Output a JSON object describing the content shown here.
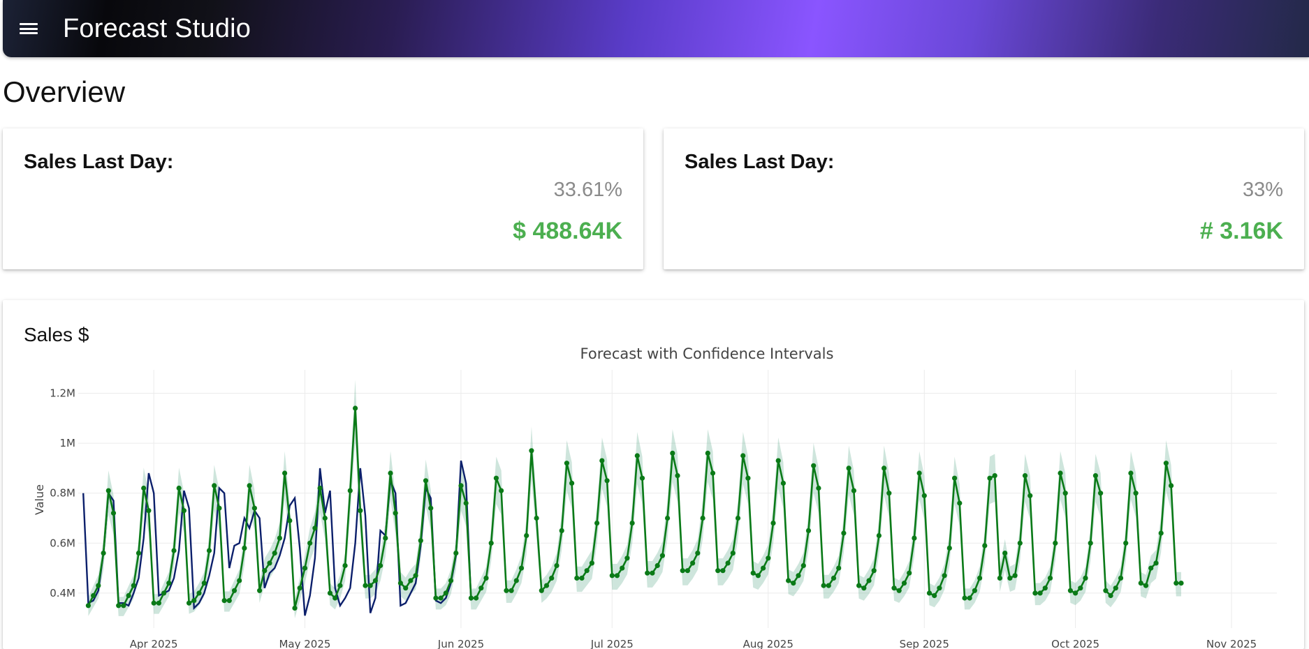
{
  "app": {
    "title": "Forecast Studio",
    "menu_icon": "hamburger-menu-icon"
  },
  "page": {
    "heading": "Overview"
  },
  "kpis": [
    {
      "label": "Sales Last Day:",
      "percent": "33.61%",
      "value": "$ 488.64K"
    },
    {
      "label": "Sales Last Day:",
      "percent": "33%",
      "value": "# 3.16K"
    }
  ],
  "sales_card": {
    "heading": "Sales $"
  },
  "chart_data": {
    "type": "line",
    "title": "Forecast with Confidence Intervals",
    "xlabel": "",
    "ylabel": "Value",
    "x_ticks": [
      "Apr 2025",
      "May 2025",
      "Jun 2025",
      "Jul 2025",
      "Aug 2025",
      "Sep 2025",
      "Oct 2025",
      "Nov 2025"
    ],
    "y_ticks": [
      "0.4M",
      "0.6M",
      "0.8M",
      "1M",
      "1.2M"
    ],
    "y_tick_values": [
      400000,
      600000,
      800000,
      1000000,
      1200000
    ],
    "ylim": [
      260000,
      1260000
    ],
    "x_start": "2025-03-17",
    "x_end": "2025-11-10",
    "actual_start": "2025-03-18",
    "actual": [
      800000,
      360000,
      370000,
      410000,
      560000,
      800000,
      770000,
      360000,
      360000,
      350000,
      400000,
      460000,
      620000,
      880000,
      800000,
      390000,
      400000,
      410000,
      460000,
      570000,
      810000,
      740000,
      340000,
      360000,
      400000,
      470000,
      560000,
      820000,
      800000,
      500000,
      590000,
      600000,
      700000,
      660000,
      730000,
      700000,
      420000,
      480000,
      500000,
      550000,
      620000,
      750000,
      780000,
      580000,
      310000,
      390000,
      540000,
      900000,
      720000,
      810000,
      420000,
      350000,
      380000,
      420000,
      600000,
      900000,
      710000,
      320000,
      380000,
      650000,
      630000,
      850000,
      800000,
      350000,
      360000,
      400000,
      440000,
      590000,
      820000,
      780000,
      370000,
      360000,
      380000,
      440000,
      550000,
      930000,
      840000,
      370000
    ],
    "series": [
      {
        "name": "Forecast",
        "start": "2025-03-19",
        "values": [
          350000,
          390000,
          430000,
          560000,
          810000,
          720000,
          350000,
          350000,
          390000,
          430000,
          560000,
          820000,
          730000,
          360000,
          360000,
          400000,
          440000,
          570000,
          820000,
          730000,
          360000,
          370000,
          400000,
          440000,
          570000,
          830000,
          740000,
          370000,
          370000,
          410000,
          450000,
          580000,
          830000,
          740000,
          410000,
          490000,
          520000,
          560000,
          620000,
          880000,
          690000,
          340000,
          420000,
          500000,
          600000,
          660000,
          820000,
          700000,
          400000,
          380000,
          430000,
          510000,
          810000,
          1140000,
          730000,
          430000,
          430000,
          450000,
          510000,
          620000,
          880000,
          720000,
          440000,
          420000,
          450000,
          470000,
          610000,
          850000,
          740000,
          380000,
          380000,
          400000,
          450000,
          560000,
          830000,
          760000,
          380000,
          380000,
          420000,
          460000,
          600000,
          860000,
          810000,
          410000,
          410000,
          450000,
          500000,
          630000,
          970000,
          700000,
          410000,
          430000,
          460000,
          510000,
          650000,
          920000,
          840000,
          460000,
          460000,
          490000,
          520000,
          680000,
          930000,
          850000,
          470000,
          470000,
          500000,
          540000,
          680000,
          950000,
          860000,
          480000,
          480000,
          510000,
          550000,
          700000,
          960000,
          870000,
          490000,
          490000,
          520000,
          560000,
          700000,
          960000,
          880000,
          490000,
          490000,
          520000,
          560000,
          700000,
          950000,
          860000,
          480000,
          470000,
          500000,
          540000,
          680000,
          930000,
          840000,
          450000,
          440000,
          470000,
          510000,
          650000,
          910000,
          820000,
          430000,
          430000,
          460000,
          500000,
          640000,
          900000,
          810000,
          430000,
          420000,
          450000,
          490000,
          630000,
          900000,
          800000,
          420000,
          410000,
          440000,
          480000,
          620000,
          880000,
          790000,
          400000,
          390000,
          420000,
          470000,
          580000,
          860000,
          760000,
          380000,
          380000,
          410000,
          460000,
          590000,
          860000,
          870000,
          460000,
          560000,
          460000,
          470000,
          600000,
          870000,
          790000,
          400000,
          400000,
          420000,
          460000,
          600000,
          880000,
          800000,
          410000,
          400000,
          420000,
          460000,
          600000,
          870000,
          800000,
          410000,
          390000,
          420000,
          460000,
          600000,
          880000,
          800000,
          440000,
          430000,
          500000,
          520000,
          640000,
          920000,
          830000,
          440000,
          440000
        ]
      }
    ],
    "legend": "none",
    "grid": true
  }
}
